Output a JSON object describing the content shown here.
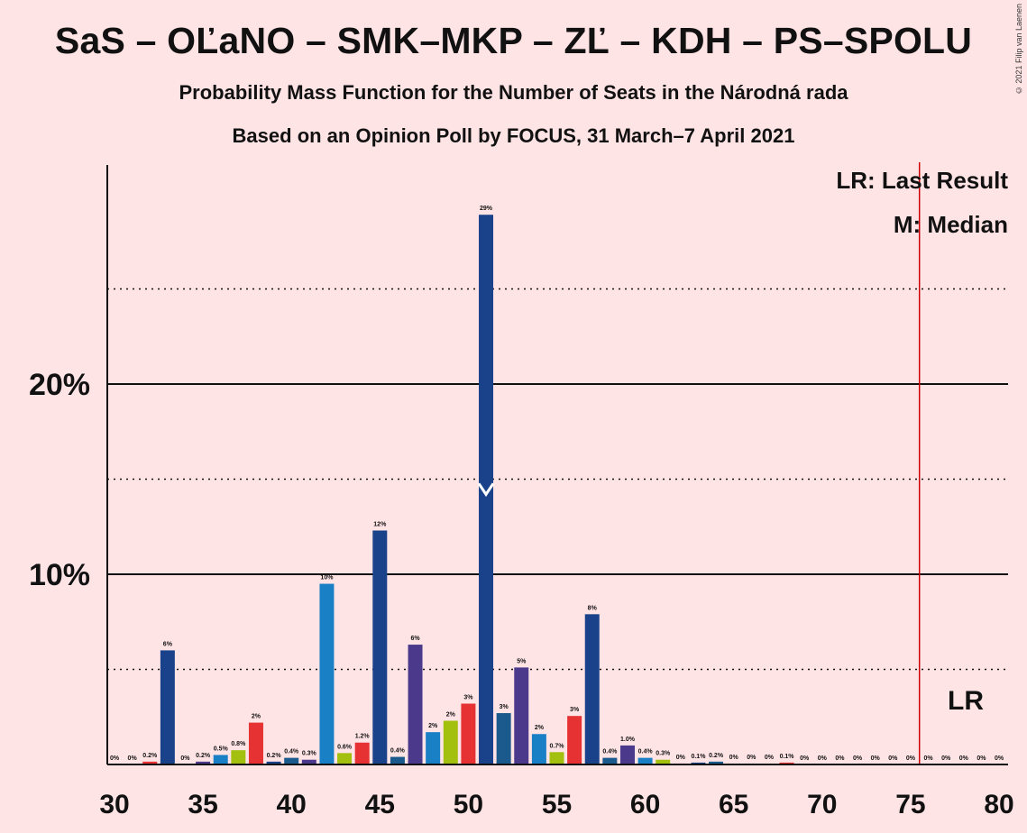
{
  "title": "SaS – OĽaNO – SMK–MKP – ZĽ – KDH – PS–SPOLU",
  "subtitle": "Probability Mass Function for the Number of Seats in the Národná rada",
  "subtitle2": "Based on an Opinion Poll by FOCUS, 31 March–7 April 2021",
  "copyright": "© 2021 Filip van Laenen",
  "legend": {
    "lr": "LR: Last Result",
    "median": "M: Median"
  },
  "lr_marker_label": "LR",
  "colors": {
    "background": "#FFE4E6",
    "lr_line": "#CC0000"
  },
  "chart_data": {
    "type": "bar",
    "xlabel": "",
    "ylabel": "",
    "x": [
      30,
      31,
      32,
      33,
      34,
      35,
      36,
      37,
      38,
      39,
      40,
      41,
      42,
      43,
      44,
      45,
      46,
      47,
      48,
      49,
      50,
      51,
      52,
      53,
      54,
      55,
      56,
      57,
      58,
      59,
      60,
      61,
      62,
      63,
      64,
      65,
      66,
      67,
      68,
      69,
      70,
      71,
      72,
      73,
      74,
      75,
      76,
      77,
      78,
      79,
      80
    ],
    "values": [
      0,
      0,
      0.2,
      6,
      0,
      0.2,
      0.5,
      0.8,
      2,
      0.2,
      0.4,
      0.3,
      10,
      0.6,
      1.2,
      12,
      0.4,
      6,
      2,
      2,
      3,
      29,
      3,
      5,
      2,
      0.7,
      3,
      8,
      0.4,
      1.0,
      0.4,
      0.3,
      0,
      0.1,
      0.2,
      0,
      0,
      0,
      0.1,
      0,
      0,
      0,
      0,
      0,
      0,
      0,
      0,
      0,
      0,
      0,
      0
    ],
    "heights": [
      0,
      0,
      0.15,
      6.0,
      0,
      0.15,
      0.5,
      0.75,
      2.2,
      0.15,
      0.35,
      0.25,
      9.5,
      0.6,
      1.15,
      12.3,
      0.4,
      6.3,
      1.7,
      2.3,
      3.2,
      28.9,
      2.7,
      5.1,
      1.6,
      0.65,
      2.55,
      7.9,
      0.35,
      1.0,
      0.35,
      0.25,
      0.05,
      0.1,
      0.15,
      0.05,
      0.05,
      0.05,
      0.1,
      0,
      0,
      0,
      0,
      0,
      0,
      0,
      0,
      0,
      0,
      0,
      0
    ],
    "labels": [
      "0%",
      "0%",
      "0.2%",
      "6%",
      "0%",
      "0.2%",
      "0.5%",
      "0.8%",
      "2%",
      "0.2%",
      "0.4%",
      "0.3%",
      "10%",
      "0.6%",
      "1.2%",
      "12%",
      "0.4%",
      "6%",
      "2%",
      "2%",
      "3%",
      "29%",
      "3%",
      "5%",
      "2%",
      "0.7%",
      "3%",
      "8%",
      "0.4%",
      "1.0%",
      "0.4%",
      "0.3%",
      "0%",
      "0.1%",
      "0.2%",
      "0%",
      "0%",
      "0%",
      "0.1%",
      "0%",
      "0%",
      "0%",
      "0%",
      "0%",
      "0%",
      "0%",
      "0%",
      "0%",
      "0%",
      "0%",
      "0%"
    ],
    "bar_colors": [
      "#1A428A",
      "#1A428A",
      "#E63232",
      "#1A428A",
      "#1A428A",
      "#4B3A8C",
      "#1A80C6",
      "#A3C00F",
      "#E63232",
      "#1A428A",
      "#1A5A8C",
      "#4B3A8C",
      "#1A80C6",
      "#A3C00F",
      "#E63232",
      "#1A428A",
      "#1A5A8C",
      "#4B3A8C",
      "#1A80C6",
      "#A3C00F",
      "#E63232",
      "#1A428A",
      "#1A5A8C",
      "#4B3A8C",
      "#1A80C6",
      "#A3C00F",
      "#E63232",
      "#1A428A",
      "#1A5A8C",
      "#4B3A8C",
      "#1A80C6",
      "#A3C00F",
      "#E63232",
      "#1A428A",
      "#1A5A8C",
      "#4B3A8C",
      "#1A80C6",
      "#A3C00F",
      "#E63232",
      "#1A428A",
      "#1A5A8C",
      "#4B3A8C",
      "#1A80C6",
      "#A3C00F",
      "#E63232",
      "#1A428A",
      "#1A5A8C",
      "#4B3A8C",
      "#1A80C6",
      "#A3C00F",
      "#E63232"
    ],
    "xlim": [
      30,
      80
    ],
    "ylim": [
      0,
      31.5
    ],
    "x_ticks": [
      30,
      35,
      40,
      45,
      50,
      55,
      60,
      65,
      70,
      75,
      80
    ],
    "x_tick_labels": [
      "30",
      "35",
      "40",
      "45",
      "50",
      "55",
      "60",
      "65",
      "70",
      "75",
      "80"
    ],
    "y_solid_gridlines": [
      10,
      20
    ],
    "y_dotted_gridlines": [
      5,
      15,
      25
    ],
    "y_tick_labels": [
      {
        "value": 10,
        "label": "10%"
      },
      {
        "value": 20,
        "label": "20%"
      }
    ],
    "median": 51,
    "last_result": 75.5,
    "grid": true,
    "legend_position": "top-right"
  }
}
